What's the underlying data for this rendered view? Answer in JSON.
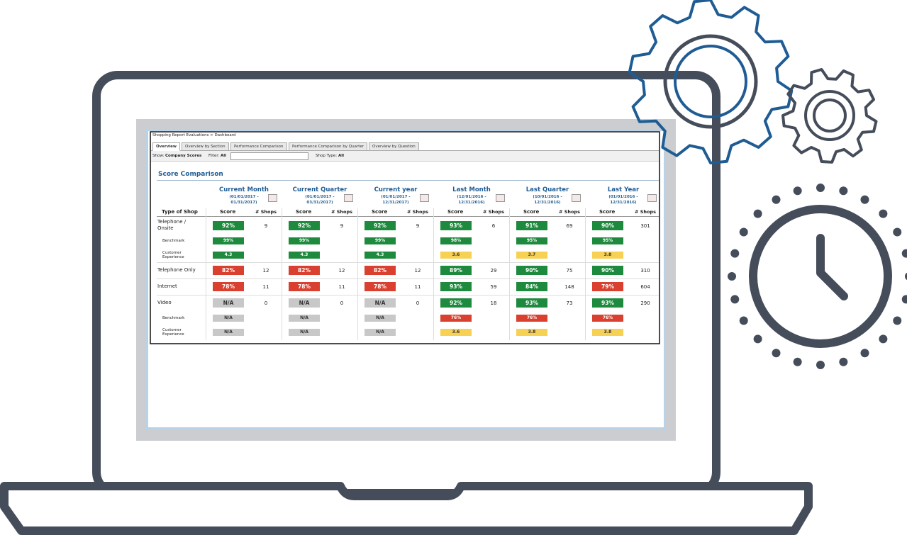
{
  "breadcrumb": "Shopping Report Evaluations > Dashboard",
  "tabs": [
    "Overview",
    "Overview by Section",
    "Performance Comparison",
    "Performance Comparison by Quarter",
    "Overview by Question"
  ],
  "active_tab": 0,
  "filters": [
    {
      "label": "Show:",
      "value": "Company Scores"
    },
    {
      "label": "Filter:",
      "value": "All"
    },
    {
      "label": "Shop Type:",
      "value": "All"
    }
  ],
  "section_title": "Score Comparison",
  "table": {
    "row_header": "Type of Shop",
    "score_header": "Score",
    "shops_header": "# Shops",
    "colors": {
      "green": "#1e8a3e",
      "red": "#d9402f",
      "yellow": "#f7d154",
      "grey": "#c8c8c8"
    },
    "periods": [
      {
        "title": "Current Month",
        "range": [
          "(01/01/2017 -",
          "01/31/2017)"
        ]
      },
      {
        "title": "Current Quarter",
        "range": [
          "(01/01/2017 -",
          "03/31/2017)"
        ]
      },
      {
        "title": "Current year",
        "range": [
          "(01/01/2017 -",
          "12/31/2017)"
        ]
      },
      {
        "title": "Last Month",
        "range": [
          "(12/01/2016 -",
          "12/31/2016)"
        ]
      },
      {
        "title": "Last Quarter",
        "range": [
          "(10/01/2016 -",
          "12/31/2016)"
        ]
      },
      {
        "title": "Last Year",
        "range": [
          "(01/01/2016 -",
          "12/31/2016)"
        ]
      }
    ],
    "groups": [
      {
        "rows": [
          {
            "label": "Telephone / Onsite",
            "sub": false,
            "cells": [
              {
                "score": "92%",
                "tone": "green",
                "shops": "9"
              },
              {
                "score": "92%",
                "tone": "green",
                "shops": "9"
              },
              {
                "score": "92%",
                "tone": "green",
                "shops": "9"
              },
              {
                "score": "93%",
                "tone": "green",
                "shops": "6"
              },
              {
                "score": "91%",
                "tone": "green",
                "shops": "69"
              },
              {
                "score": "90%",
                "tone": "green",
                "shops": "301"
              }
            ]
          },
          {
            "label": "Benchmark",
            "sub": true,
            "cells": [
              {
                "score": "99%",
                "tone": "green"
              },
              {
                "score": "99%",
                "tone": "green"
              },
              {
                "score": "99%",
                "tone": "green"
              },
              {
                "score": "98%",
                "tone": "green"
              },
              {
                "score": "95%",
                "tone": "green"
              },
              {
                "score": "95%",
                "tone": "green"
              }
            ]
          },
          {
            "label": "Customer Experience",
            "sub": true,
            "cells": [
              {
                "score": "4.3",
                "tone": "green"
              },
              {
                "score": "4.3",
                "tone": "green"
              },
              {
                "score": "4.3",
                "tone": "green"
              },
              {
                "score": "3.6",
                "tone": "yellow"
              },
              {
                "score": "3.7",
                "tone": "yellow"
              },
              {
                "score": "3.8",
                "tone": "yellow"
              }
            ]
          }
        ]
      },
      {
        "rows": [
          {
            "label": "Telephone Only",
            "sub": false,
            "cells": [
              {
                "score": "82%",
                "tone": "red",
                "shops": "12"
              },
              {
                "score": "82%",
                "tone": "red",
                "shops": "12"
              },
              {
                "score": "82%",
                "tone": "red",
                "shops": "12"
              },
              {
                "score": "89%",
                "tone": "green",
                "shops": "29"
              },
              {
                "score": "90%",
                "tone": "green",
                "shops": "75"
              },
              {
                "score": "90%",
                "tone": "green",
                "shops": "310"
              }
            ]
          }
        ]
      },
      {
        "rows": [
          {
            "label": "Internet",
            "sub": false,
            "cells": [
              {
                "score": "78%",
                "tone": "red",
                "shops": "11"
              },
              {
                "score": "78%",
                "tone": "red",
                "shops": "11"
              },
              {
                "score": "78%",
                "tone": "red",
                "shops": "11"
              },
              {
                "score": "93%",
                "tone": "green",
                "shops": "59"
              },
              {
                "score": "84%",
                "tone": "green",
                "shops": "148"
              },
              {
                "score": "79%",
                "tone": "red",
                "shops": "604"
              }
            ]
          }
        ]
      },
      {
        "rows": [
          {
            "label": "Video",
            "sub": false,
            "cells": [
              {
                "score": "N/A",
                "tone": "grey",
                "shops": "0"
              },
              {
                "score": "N/A",
                "tone": "grey",
                "shops": "0"
              },
              {
                "score": "N/A",
                "tone": "grey",
                "shops": "0"
              },
              {
                "score": "92%",
                "tone": "green",
                "shops": "18"
              },
              {
                "score": "93%",
                "tone": "green",
                "shops": "73"
              },
              {
                "score": "93%",
                "tone": "green",
                "shops": "290"
              }
            ]
          },
          {
            "label": "Benchmark",
            "sub": true,
            "cells": [
              {
                "score": "N/A",
                "tone": "grey"
              },
              {
                "score": "N/A",
                "tone": "grey"
              },
              {
                "score": "N/A",
                "tone": "grey"
              },
              {
                "score": "76%",
                "tone": "red"
              },
              {
                "score": "76%",
                "tone": "red"
              },
              {
                "score": "76%",
                "tone": "red"
              }
            ]
          },
          {
            "label": "Customer Experience",
            "sub": true,
            "cells": [
              {
                "score": "N/A",
                "tone": "grey"
              },
              {
                "score": "N/A",
                "tone": "grey"
              },
              {
                "score": "N/A",
                "tone": "grey"
              },
              {
                "score": "3.6",
                "tone": "yellow"
              },
              {
                "score": "3.8",
                "tone": "yellow"
              },
              {
                "score": "3.8",
                "tone": "yellow"
              }
            ]
          }
        ]
      }
    ]
  }
}
